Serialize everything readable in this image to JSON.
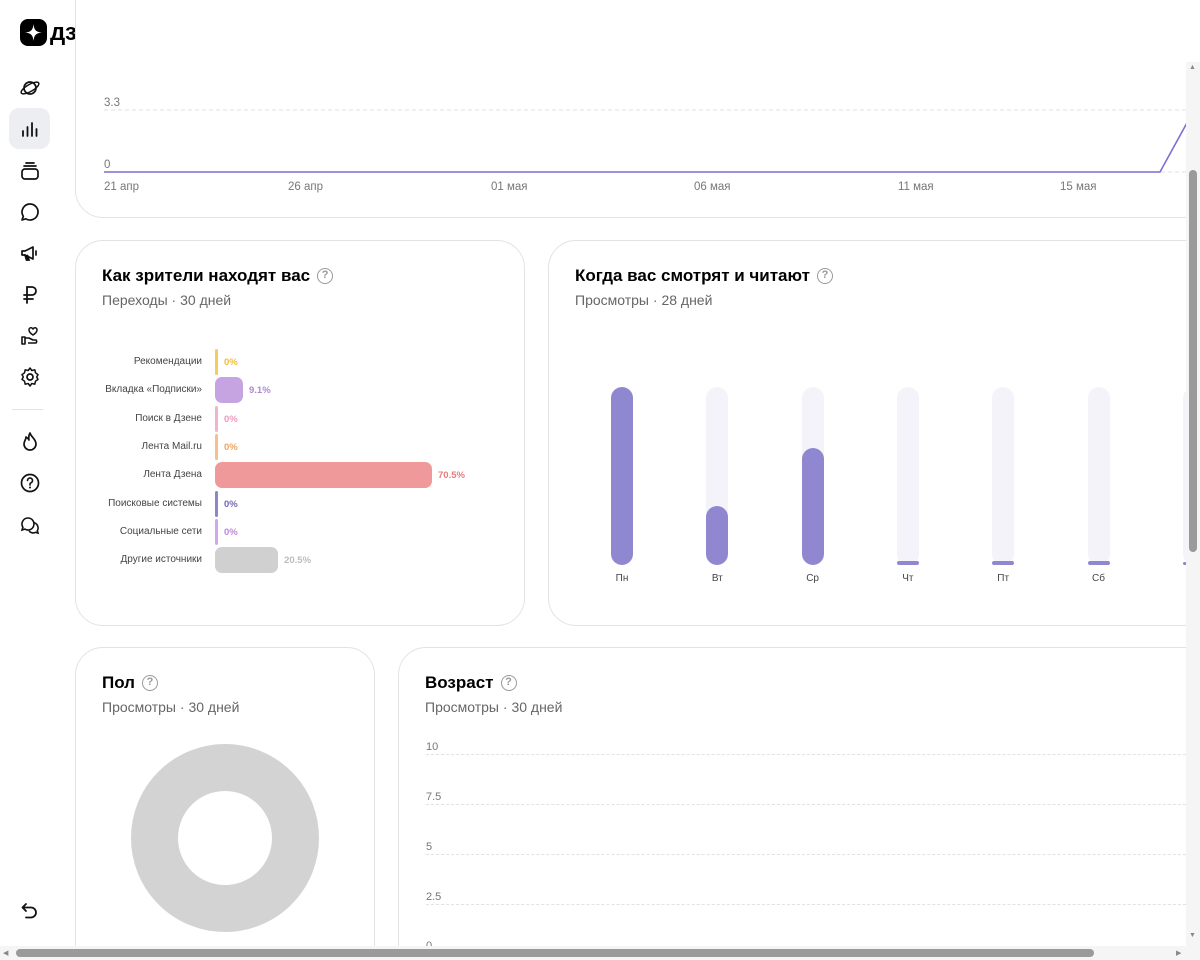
{
  "app": {
    "logo_text": "дзен"
  },
  "header": {
    "icons": [
      "plus-square-icon",
      "bell-icon",
      "avatar"
    ]
  },
  "sidebar": {
    "items": [
      {
        "icon": "planet-icon",
        "active": false
      },
      {
        "icon": "bar-chart-icon",
        "active": true
      },
      {
        "icon": "layers-icon",
        "active": false
      },
      {
        "icon": "chat-bubble-icon",
        "active": false
      },
      {
        "icon": "megaphone-icon",
        "active": false
      },
      {
        "icon": "ruble-icon",
        "active": false
      },
      {
        "icon": "hand-heart-icon",
        "active": false
      },
      {
        "icon": "gear-icon",
        "active": false
      },
      {
        "icon": "flame-icon",
        "active": false
      },
      {
        "icon": "help-circle-icon",
        "active": false
      },
      {
        "icon": "chats-icon",
        "active": false
      },
      {
        "icon": "undo-icon",
        "active": false
      }
    ]
  },
  "timeline_card": {
    "chart_data": {
      "type": "line",
      "y_ticks": [
        "3.3",
        "0"
      ],
      "x_ticks": [
        "21 апр",
        "26 апр",
        "01 мая",
        "06 мая",
        "11 мая",
        "15 мая"
      ],
      "series": [
        {
          "color": "#7b6fd0",
          "values_note": ""
        }
      ]
    }
  },
  "sources_card": {
    "title": "Как зрители находят вас",
    "subtitle": "Переходы · 30 дней",
    "chart_data": {
      "type": "bar",
      "orientation": "horizontal",
      "categories": [
        "Рекомендации",
        "Вкладка «Подписки»",
        "Поиск в Дзене",
        "Лента Mail.ru",
        "Лента Дзена",
        "Поисковые системы",
        "Социальные сети",
        "Другие источники"
      ],
      "values": [
        0,
        9.1,
        0,
        0,
        70.5,
        0,
        0,
        20.5
      ],
      "labels": [
        "0%",
        "9.1%",
        "0%",
        "0%",
        "70.5%",
        "0%",
        "0%",
        "20.5%"
      ],
      "colors": [
        "#f7cc5e",
        "#c6a4e2",
        "#f3b3cf",
        "#f6c08d",
        "#f0999a",
        "#8d86c9",
        "#d3a8e8",
        "#d0d0d0"
      ],
      "label_colors": [
        "#f2bb3a",
        "#b088d6",
        "#ee98bd",
        "#f0a45e",
        "#e97b7c",
        "#7268b6",
        "#be86dd",
        "#bcbcbc"
      ]
    }
  },
  "when_card": {
    "title": "Когда вас смотрят и читают",
    "subtitle": "Просмотры · 28 дней",
    "chart_data": {
      "type": "bar",
      "categories": [
        "Пн",
        "Вт",
        "Ср",
        "Чт",
        "Пт",
        "Сб"
      ],
      "values": [
        1.0,
        0.33,
        0.66,
        0.02,
        0.02,
        0.02
      ],
      "ylim": [
        0,
        1
      ]
    }
  },
  "gender_card": {
    "title": "Пол",
    "subtitle": "Просмотры · 30 дней",
    "chart_data": {
      "type": "pie",
      "values": [
        100
      ],
      "colors": [
        "#d3d3d3"
      ]
    }
  },
  "age_card": {
    "title": "Возраст",
    "subtitle": "Просмотры · 30 дней",
    "chart_data": {
      "type": "bar",
      "y_ticks": [
        "10",
        "7.5",
        "5",
        "2.5",
        "0"
      ],
      "ylim": [
        0,
        10
      ]
    }
  }
}
